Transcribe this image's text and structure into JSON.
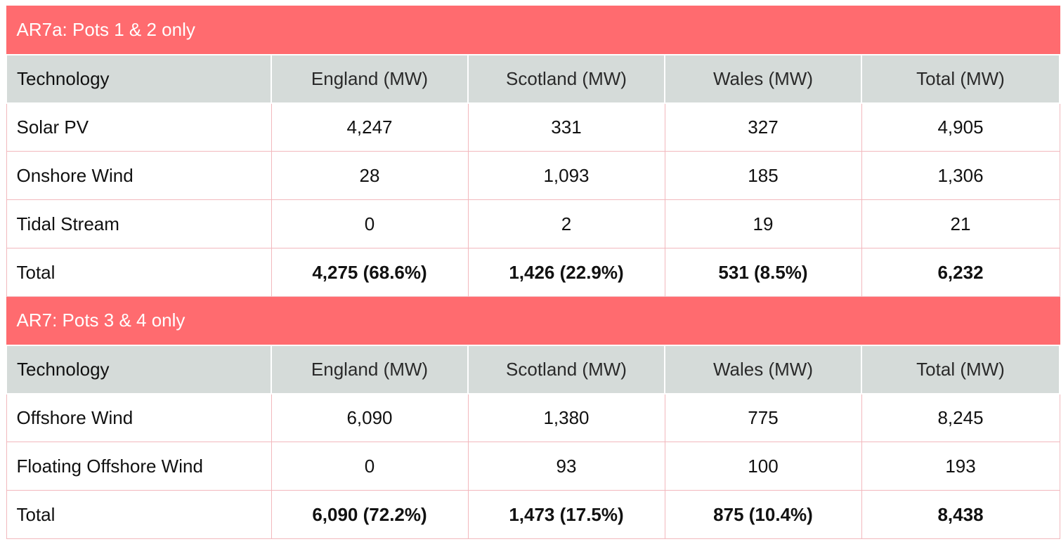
{
  "sections": [
    {
      "title": "AR7a: Pots 1 & 2 only",
      "headers": [
        "Technology",
        "England (MW)",
        "Scotland (MW)",
        "Wales (MW)",
        "Total (MW)"
      ],
      "rows": [
        [
          "Solar PV",
          "4,247",
          "331",
          "327",
          "4,905"
        ],
        [
          "Onshore Wind",
          "28",
          "1,093",
          "185",
          "1,306"
        ],
        [
          "Tidal Stream",
          "0",
          "2",
          "19",
          "21"
        ]
      ],
      "total": [
        "Total",
        "4,275 (68.6%)",
        "1,426 (22.9%)",
        "531 (8.5%)",
        "6,232"
      ]
    },
    {
      "title": "AR7: Pots 3 & 4 only",
      "headers": [
        "Technology",
        "England (MW)",
        "Scotland (MW)",
        "Wales (MW)",
        "Total (MW)"
      ],
      "rows": [
        [
          "Offshore Wind",
          "6,090",
          "1,380",
          "775",
          "8,245"
        ],
        [
          "Floating Offshore Wind",
          "0",
          "93",
          "100",
          "193"
        ]
      ],
      "total": [
        "Total",
        "6,090 (72.2%)",
        "1,473 (17.5%)",
        "875 (10.4%)",
        "8,438"
      ]
    }
  ],
  "colors": {
    "section_bg": "#ff6b6f",
    "header_bg": "#d5dbd9",
    "border": "#f2b8bd"
  }
}
